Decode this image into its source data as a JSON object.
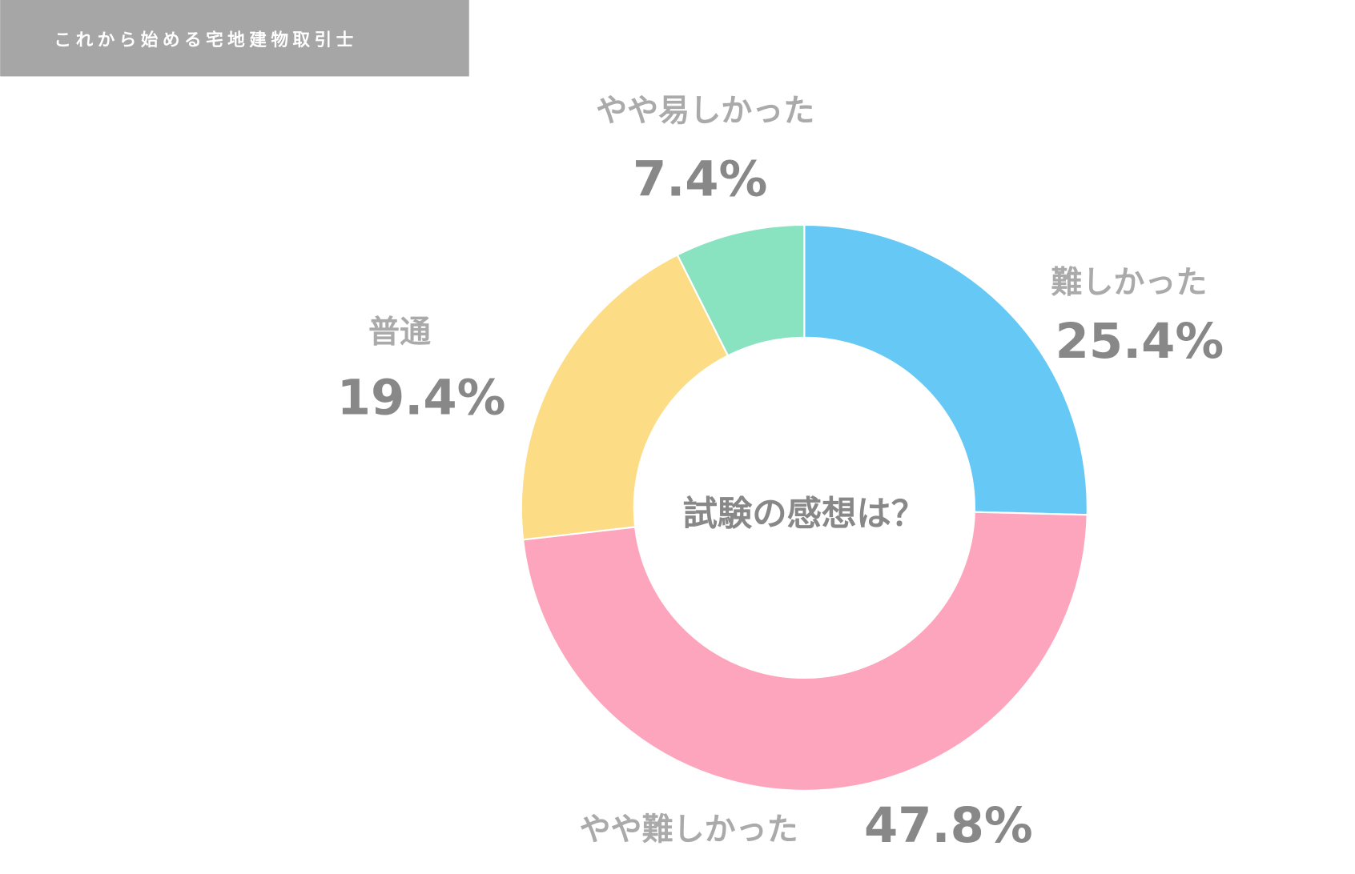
{
  "header": {
    "title": "これから始める宅地建物取引士"
  },
  "chart_data": {
    "type": "pie",
    "donut": true,
    "center_text": "試験の感想は？",
    "categories": [
      "難しかった",
      "やや難しかった",
      "普通",
      "やや易しかった"
    ],
    "values": [
      25.4,
      47.8,
      19.4,
      7.4
    ],
    "value_labels": [
      "25.4%",
      "47.8%",
      "19.4%",
      "7.4%"
    ],
    "colors": [
      "#66c8f5",
      "#fda5bd",
      "#fddc86",
      "#8ae3c0"
    ]
  }
}
